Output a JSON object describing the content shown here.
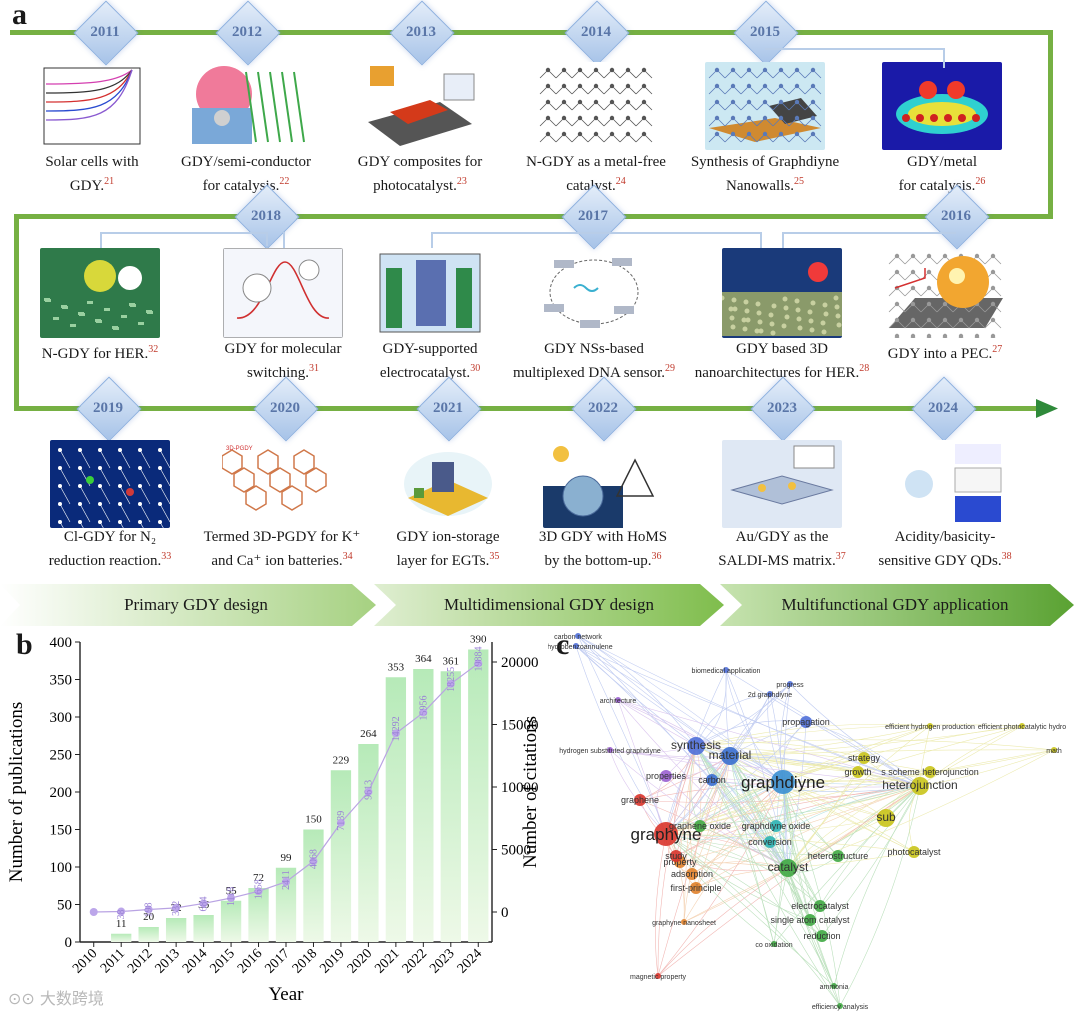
{
  "panel_a": {
    "letter": "a",
    "rows": [
      {
        "items": [
          {
            "year": "2011",
            "caption_lines": [
              "Solar cells with",
              "GDY."
            ],
            "ref": "21",
            "thumb": "solar-cell-iv-curves"
          },
          {
            "year": "2012",
            "caption_lines": [
              "GDY/semi-conductor",
              "for catalysis."
            ],
            "ref": "22",
            "thumb": "tio2-graphdiyne-photocatalysis"
          },
          {
            "year": "2013",
            "caption_lines": [
              "GDY composites for",
              "photocatalyst."
            ],
            "ref": "23",
            "thumb": "gdy-composite-sheet"
          },
          {
            "year": "2014",
            "caption_lines": [
              "N-GDY as a metal-free",
              "catalyst."
            ],
            "ref": "24",
            "thumb": "n-gdy-lattice"
          },
          {
            "year": "2015",
            "caption_lines": [
              "Synthesis of Graphdiyne",
              "Nanowalls."
            ],
            "ref": "25",
            "thumb": "graphdiyne-nanowalls"
          },
          {
            "year": "",
            "caption_lines": [
              "GDY/metal",
              "for catalysis."
            ],
            "ref": "26",
            "thumb": "lol-heatmap"
          }
        ]
      },
      {
        "items": [
          {
            "year": "2018",
            "caption_lines": [
              "N-GDY for HER."
            ],
            "ref": "32",
            "thumb": "n-gdy-her-board"
          },
          {
            "year": "",
            "caption_lines": [
              "GDY for molecular",
              "switching."
            ],
            "ref": "31",
            "thumb": "molecular-switching"
          },
          {
            "year": "",
            "caption_lines": [
              "GDY-supported",
              "electrocatalyst."
            ],
            "ref": "30",
            "thumb": "gdy-electrocatalyst-cell"
          },
          {
            "year": "2017",
            "caption_lines": [
              "GDY NSs-based",
              "multiplexed DNA sensor."
            ],
            "ref": "29",
            "thumb": "dna-sensor-cycle"
          },
          {
            "year": "",
            "caption_lines": [
              "GDY based 3D",
              "nanoarchitectures for HER."
            ],
            "ref": "28",
            "thumb": "3d-nanoarchitecture"
          },
          {
            "year": "2016",
            "caption_lines": [
              "GDY into a PEC."
            ],
            "ref": "27",
            "thumb": "pec-sphere"
          }
        ]
      },
      {
        "items": [
          {
            "year": "2019",
            "caption_lines": [
              "Cl-GDY for N₂",
              "reduction reaction."
            ],
            "ref": "33",
            "thumb": "cl-gdy-lattice"
          },
          {
            "year": "2020",
            "caption_lines": [
              "Termed 3D-PGDY  for K⁺",
              "and Ca⁺ ion batteries."
            ],
            "ref": "34",
            "thumb": "3d-pgdy-structure"
          },
          {
            "year": "2021",
            "caption_lines": [
              "GDY ion-storage",
              "layer  for  EGTs."
            ],
            "ref": "35",
            "thumb": "gdy-ion-storage"
          },
          {
            "year": "2022",
            "caption_lines": [
              "3D GDY with HoMS",
              "by the bottom-up."
            ],
            "ref": "36",
            "thumb": "3d-gdy-homs"
          },
          {
            "year": "2023",
            "caption_lines": [
              "Au/GDY as the",
              "SALDI-MS matrix."
            ],
            "ref": "37",
            "thumb": "au-gdy-saldi"
          },
          {
            "year": "2024",
            "caption_lines": [
              "Acidity/basicity-",
              "sensitive GDY QDs."
            ],
            "ref": "38",
            "thumb": "gdy-qds"
          }
        ]
      }
    ],
    "stages": [
      "Primary GDY design",
      "Multidimensional GDY design",
      "Multifunctional GDY application"
    ],
    "colors": {
      "track": "#76b043",
      "diamond": "#a7c3e8",
      "year_text": "#5a76a8",
      "ref": "#c0392b"
    }
  },
  "panel_b": {
    "letter": "b",
    "chart_data": {
      "type": "bar",
      "categories": [
        "2010",
        "2011",
        "2012",
        "2013",
        "2014",
        "2015",
        "2016",
        "2017",
        "2018",
        "2019",
        "2020",
        "2021",
        "2022",
        "2023",
        "2024"
      ],
      "series": [
        {
          "name": "Number of publications",
          "axis": "left",
          "type": "bar",
          "values": [
            null,
            11,
            20,
            32,
            36,
            55,
            72,
            99,
            150,
            229,
            264,
            353,
            364,
            361,
            390
          ]
        },
        {
          "name": "Number of citations",
          "axis": "right",
          "type": "line",
          "values": [
            0,
            38,
            198,
            332,
            684,
            1118,
            1658,
            2411,
            4068,
            7139,
            9613,
            14292,
            15956,
            18255,
            19884
          ]
        }
      ],
      "xlabel": "Year",
      "ylabel": "Number of publications",
      "y2label": "Number of citations",
      "ylim": [
        0,
        400
      ],
      "y2lim": [
        -2400,
        21600
      ],
      "yticks": [
        0,
        50,
        100,
        150,
        200,
        250,
        300,
        350,
        400
      ],
      "y2ticks": [
        0,
        5000,
        10000,
        15000,
        20000
      ],
      "colors": {
        "bar_top": "#b6eab8",
        "bar_bottom": "#eef9e8",
        "line": "#b9a3e3",
        "marker": "#bca6ea",
        "label": "#1a1a1a",
        "inner_label": "#9a82d6"
      }
    }
  },
  "panel_c": {
    "letter": "c",
    "network": {
      "type": "keyword-cooccurrence",
      "nodes": [
        {
          "label": "graphdiyne",
          "weight": "large",
          "color": "#3a8fd0"
        },
        {
          "label": "graphyne",
          "weight": "large",
          "color": "#d9342b"
        },
        {
          "label": "material",
          "weight": "medium",
          "color": "#3a6fd0"
        },
        {
          "label": "synthesis",
          "weight": "medium",
          "color": "#4f6fd8"
        },
        {
          "label": "heterojunction",
          "weight": "medium",
          "color": "#c9c41a"
        },
        {
          "label": "s scheme heterojunction",
          "weight": "small",
          "color": "#c9c41a"
        },
        {
          "label": "sub",
          "weight": "medium",
          "color": "#c9c41a"
        },
        {
          "label": "catalyst",
          "weight": "medium",
          "color": "#3fa842"
        },
        {
          "label": "heterostructure",
          "weight": "small",
          "color": "#3fa842"
        },
        {
          "label": "reduction",
          "weight": "small",
          "color": "#3fa842"
        },
        {
          "label": "adsorption",
          "weight": "small",
          "color": "#e0812a"
        },
        {
          "label": "first-principle",
          "weight": "small",
          "color": "#e0812a"
        },
        {
          "label": "property",
          "weight": "small",
          "color": "#e0812a"
        },
        {
          "label": "study",
          "weight": "small",
          "color": "#d9342b"
        },
        {
          "label": "graphene",
          "weight": "small",
          "color": "#d9342b"
        },
        {
          "label": "carbon",
          "weight": "small",
          "color": "#3a6fd0"
        },
        {
          "label": "growth",
          "weight": "small",
          "color": "#c9c41a"
        },
        {
          "label": "propagation",
          "weight": "small",
          "color": "#4f6fd8"
        },
        {
          "label": "properties",
          "weight": "small",
          "color": "#9a5fd0"
        },
        {
          "label": "conversion",
          "weight": "small",
          "color": "#2bb3b3"
        },
        {
          "label": "single atom catalyst",
          "weight": "small",
          "color": "#3fa842"
        },
        {
          "label": "electrocatalyst",
          "weight": "small",
          "color": "#3fa842"
        },
        {
          "label": "graphdiyne oxide",
          "weight": "small",
          "color": "#2bb3b3"
        },
        {
          "label": "graphene oxide",
          "weight": "small",
          "color": "#3fa842"
        },
        {
          "label": "photocatalyst",
          "weight": "small",
          "color": "#c9c41a"
        },
        {
          "label": "strategy",
          "weight": "small",
          "color": "#c9c41a"
        },
        {
          "label": "efficient hydrogen production",
          "weight": "tiny",
          "color": "#c9c41a"
        },
        {
          "label": "efficient photocatalytic hydro",
          "weight": "tiny",
          "color": "#c9c41a"
        },
        {
          "label": "biomedical application",
          "weight": "tiny",
          "color": "#4f6fd8"
        },
        {
          "label": "carbon network",
          "weight": "tiny",
          "color": "#4f6fd8"
        },
        {
          "label": "dehydrobenzoannulene",
          "weight": "tiny",
          "color": "#4f6fd8"
        },
        {
          "label": "architecture",
          "weight": "tiny",
          "color": "#9a5fd0"
        },
        {
          "label": "hydrogen substituted graphdiyne",
          "weight": "tiny",
          "color": "#9a5fd0"
        },
        {
          "label": "graphyne nanosheet",
          "weight": "tiny",
          "color": "#e0812a"
        },
        {
          "label": "magnetic property",
          "weight": "tiny",
          "color": "#d9342b"
        },
        {
          "label": "co oxidation",
          "weight": "tiny",
          "color": "#3fa842"
        },
        {
          "label": "efficiency analysis",
          "weight": "tiny",
          "color": "#3fa842"
        },
        {
          "label": "ammonia",
          "weight": "tiny",
          "color": "#3fa842"
        },
        {
          "label": "math",
          "weight": "tiny",
          "color": "#c9c41a"
        },
        {
          "label": "2d graphdiyne",
          "weight": "tiny",
          "color": "#4f6fd8"
        },
        {
          "label": "progress",
          "weight": "tiny",
          "color": "#4f6fd8"
        }
      ]
    }
  },
  "watermark": "大数跨境"
}
